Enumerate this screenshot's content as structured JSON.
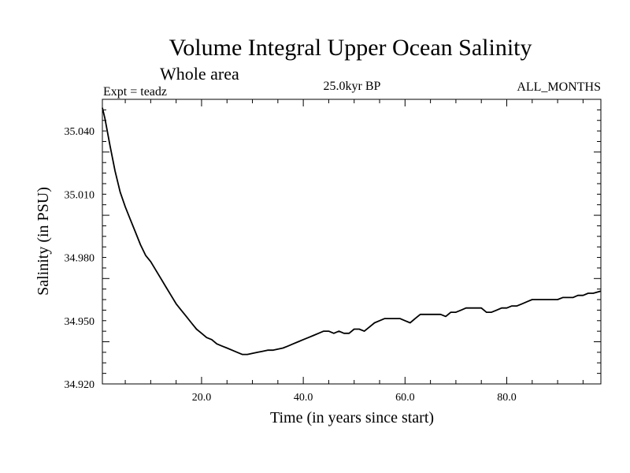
{
  "chart_data": {
    "type": "line",
    "title": "Volume Integral Upper Ocean Salinity",
    "subtitle": "Whole area",
    "expt_label": "Expt = teadz",
    "period_label": "25.0kyr BP",
    "months_label": "ALL_MONTHS",
    "xlabel": "Time (in years since start)",
    "ylabel": "Salinity (in PSU)",
    "xlim": [
      0.5,
      98.5
    ],
    "ylim": [
      34.92,
      35.055
    ],
    "x_ticks": [
      {
        "value": 20,
        "label": "20.0"
      },
      {
        "value": 40,
        "label": "40.0"
      },
      {
        "value": 60,
        "label": "60.0"
      },
      {
        "value": 80,
        "label": "80.0"
      }
    ],
    "y_ticks": [
      {
        "value": 34.92,
        "label": "34.920"
      },
      {
        "value": 34.95,
        "label": "34.950"
      },
      {
        "value": 34.98,
        "label": "34.980"
      },
      {
        "value": 35.01,
        "label": "35.010"
      },
      {
        "value": 35.04,
        "label": "35.040"
      }
    ],
    "series": [
      {
        "name": "salinity",
        "x": [
          0.5,
          1,
          2,
          3,
          4,
          5,
          6,
          7,
          8,
          9,
          10,
          11,
          12,
          13,
          14,
          15,
          16,
          17,
          18,
          19,
          20,
          21,
          22,
          23,
          24,
          25,
          26,
          27,
          28,
          29,
          30,
          31,
          32,
          33,
          34,
          35,
          36,
          37,
          38,
          39,
          40,
          41,
          42,
          43,
          44,
          45,
          46,
          47,
          48,
          49,
          50,
          51,
          52,
          53,
          54,
          55,
          56,
          57,
          58,
          59,
          60,
          61,
          62,
          63,
          64,
          65,
          66,
          67,
          68,
          69,
          70,
          71,
          72,
          73,
          74,
          75,
          76,
          77,
          78,
          79,
          80,
          81,
          82,
          83,
          84,
          85,
          86,
          87,
          88,
          89,
          90,
          91,
          92,
          93,
          94,
          95,
          96,
          97,
          98.5
        ],
        "values": [
          35.051,
          35.046,
          35.033,
          35.021,
          35.011,
          35.004,
          34.998,
          34.992,
          34.986,
          34.981,
          34.978,
          34.974,
          34.97,
          34.966,
          34.962,
          34.958,
          34.955,
          34.952,
          34.949,
          34.946,
          34.944,
          34.942,
          34.941,
          34.939,
          34.938,
          34.937,
          34.936,
          34.935,
          34.934,
          34.934,
          34.9345,
          34.935,
          34.9355,
          34.936,
          34.936,
          34.9365,
          34.937,
          34.938,
          34.939,
          34.94,
          34.941,
          34.942,
          34.943,
          34.944,
          34.945,
          34.945,
          34.944,
          34.945,
          34.944,
          34.944,
          34.946,
          34.946,
          34.945,
          34.947,
          34.949,
          34.95,
          34.951,
          34.951,
          34.951,
          34.951,
          34.95,
          34.949,
          34.951,
          34.953,
          34.953,
          34.953,
          34.953,
          34.953,
          34.952,
          34.954,
          34.954,
          34.955,
          34.956,
          34.956,
          34.956,
          34.956,
          34.954,
          34.954,
          34.955,
          34.956,
          34.956,
          34.957,
          34.957,
          34.958,
          34.959,
          34.96,
          34.96,
          34.96,
          34.96,
          34.96,
          34.96,
          34.961,
          34.961,
          34.961,
          34.962,
          34.962,
          34.963,
          34.963,
          34.964
        ]
      }
    ]
  }
}
